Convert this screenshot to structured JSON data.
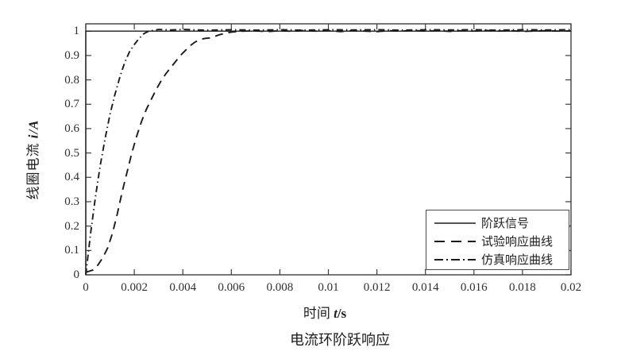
{
  "figure": {
    "caption": "电流环阶跃响应"
  },
  "chart_data": {
    "type": "line",
    "title": "",
    "xlabel": {
      "prefix": "时间 ",
      "var": "t",
      "unit": "/s"
    },
    "ylabel": {
      "prefix": "线圈电流 ",
      "var": "i",
      "unit": "/A"
    },
    "xlim": [
      0,
      0.02
    ],
    "ylim": [
      0,
      1.03
    ],
    "grid": false,
    "x_ticks": {
      "values": [
        0,
        0.002,
        0.004,
        0.006,
        0.008,
        0.01,
        0.012,
        0.014,
        0.016,
        0.018,
        0.02
      ],
      "labels": [
        "0",
        "0.002",
        "0.004",
        "0.006",
        "0.008",
        "0.01",
        "0.012",
        "0.014",
        "0.016",
        "0.018",
        "0.02"
      ]
    },
    "y_ticks": {
      "values": [
        0,
        0.1,
        0.2,
        0.3,
        0.4,
        0.5,
        0.6,
        0.7,
        0.8,
        0.9,
        1
      ],
      "labels": [
        "0",
        "0.1",
        "0.2",
        "0.3",
        "0.4",
        "0.5",
        "0.6",
        "0.7",
        "0.8",
        "0.9",
        "1"
      ]
    },
    "legend": {
      "position": "lower right",
      "entries": [
        {
          "label": "阶跃信号",
          "style": "solid"
        },
        {
          "label": "试验响应曲线",
          "style": "dashed"
        },
        {
          "label": "仿真响应曲线",
          "style": "dashdot"
        }
      ]
    },
    "colors": {
      "line": "#1b1b1b",
      "frame": "#3d3d3d",
      "text": "#2f2f2f"
    },
    "series": [
      {
        "name": "阶跃信号",
        "style": "solid",
        "line_width": 1.3,
        "points": [
          [
            0,
            0
          ],
          [
            0,
            1
          ],
          [
            0.02,
            1
          ]
        ]
      },
      {
        "name": "试验响应曲线",
        "style": "dashed",
        "line_width": 1.9,
        "points": [
          [
            0,
            0.01
          ],
          [
            0.0003,
            0.02
          ],
          [
            0.0005,
            0.04
          ],
          [
            0.0007,
            0.07
          ],
          [
            0.0009,
            0.11
          ],
          [
            0.0011,
            0.17
          ],
          [
            0.0013,
            0.25
          ],
          [
            0.0015,
            0.34
          ],
          [
            0.0017,
            0.42
          ],
          [
            0.0019,
            0.5
          ],
          [
            0.0021,
            0.57
          ],
          [
            0.0023,
            0.63
          ],
          [
            0.0025,
            0.68
          ],
          [
            0.0027,
            0.72
          ],
          [
            0.0029,
            0.76
          ],
          [
            0.0031,
            0.795
          ],
          [
            0.0033,
            0.825
          ],
          [
            0.0035,
            0.85
          ],
          [
            0.0037,
            0.875
          ],
          [
            0.0039,
            0.9
          ],
          [
            0.0041,
            0.92
          ],
          [
            0.0043,
            0.94
          ],
          [
            0.0045,
            0.955
          ],
          [
            0.0047,
            0.965
          ],
          [
            0.0049,
            0.97
          ],
          [
            0.0051,
            0.972
          ],
          [
            0.0053,
            0.978
          ],
          [
            0.0055,
            0.985
          ],
          [
            0.0057,
            0.99
          ],
          [
            0.006,
            0.996
          ],
          [
            0.0065,
            1.0
          ],
          [
            0.007,
            1.001
          ],
          [
            0.0075,
            0.998
          ],
          [
            0.008,
            1.002
          ],
          [
            0.0085,
            0.999
          ],
          [
            0.009,
            1.003
          ],
          [
            0.0095,
            1.0
          ],
          [
            0.01,
            1.002
          ],
          [
            0.0105,
            0.998
          ],
          [
            0.011,
            1.002
          ],
          [
            0.0115,
            1.0
          ],
          [
            0.012,
            0.998
          ],
          [
            0.0125,
            1.002
          ],
          [
            0.013,
            1.0
          ],
          [
            0.0135,
            1.003
          ],
          [
            0.014,
            1.0
          ],
          [
            0.0145,
            1.002
          ],
          [
            0.015,
            0.999
          ],
          [
            0.0155,
            1.002
          ],
          [
            0.016,
            1.0
          ],
          [
            0.0165,
            1.003
          ],
          [
            0.017,
            1.0
          ],
          [
            0.0175,
            1.002
          ],
          [
            0.018,
            0.999
          ],
          [
            0.019,
            1.002
          ],
          [
            0.0195,
            1.0
          ],
          [
            0.02,
            1.001
          ]
        ]
      },
      {
        "name": "仿真响应曲线",
        "style": "dashdot",
        "line_width": 1.9,
        "points": [
          [
            0,
            0
          ],
          [
            0.0002,
            0.17
          ],
          [
            0.0004,
            0.32
          ],
          [
            0.0006,
            0.45
          ],
          [
            0.0008,
            0.56
          ],
          [
            0.001,
            0.66
          ],
          [
            0.0012,
            0.74
          ],
          [
            0.0014,
            0.81
          ],
          [
            0.0016,
            0.87
          ],
          [
            0.0018,
            0.915
          ],
          [
            0.002,
            0.945
          ],
          [
            0.0022,
            0.97
          ],
          [
            0.0024,
            0.99
          ],
          [
            0.0026,
            1.0
          ],
          [
            0.003,
            1.007
          ],
          [
            0.0035,
            1.005
          ],
          [
            0.004,
            1.007
          ],
          [
            0.005,
            1.004
          ],
          [
            0.006,
            1.006
          ],
          [
            0.007,
            1.004
          ],
          [
            0.008,
            1.006
          ],
          [
            0.009,
            1.004
          ],
          [
            0.01,
            1.006
          ],
          [
            0.011,
            1.005
          ],
          [
            0.012,
            1.006
          ],
          [
            0.013,
            1.004
          ],
          [
            0.014,
            1.006
          ],
          [
            0.015,
            1.005
          ],
          [
            0.016,
            1.006
          ],
          [
            0.017,
            1.004
          ],
          [
            0.018,
            1.006
          ],
          [
            0.019,
            1.005
          ],
          [
            0.02,
            1.006
          ]
        ]
      }
    ]
  }
}
